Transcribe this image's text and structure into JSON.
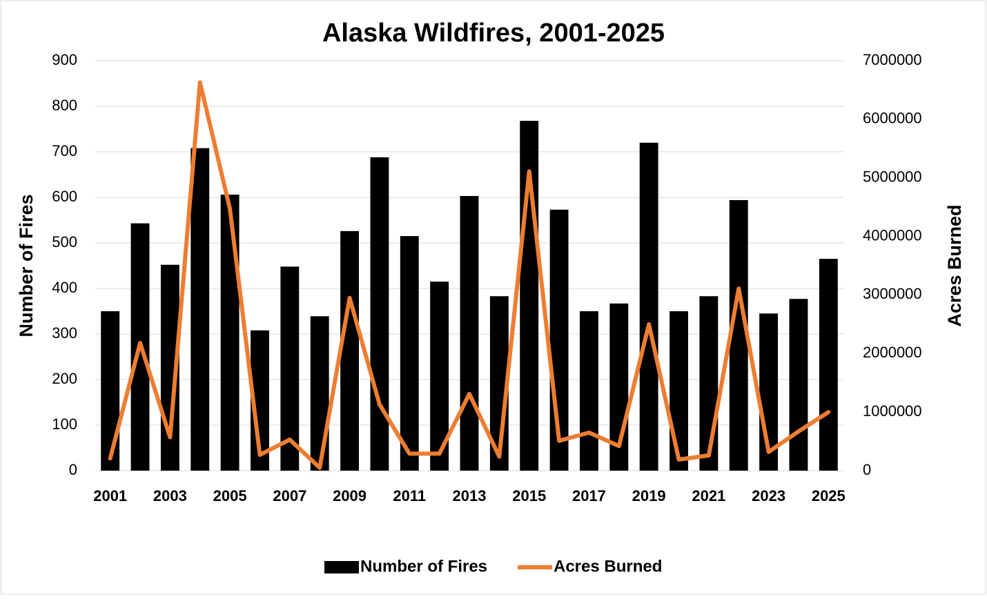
{
  "chart_data": {
    "type": "bar-line",
    "title": "Alaska Wildfires, 2001-2025",
    "y_label": "Number of Fires",
    "y2_label": "Acres Burned",
    "categories": [
      "2001",
      null,
      "2003",
      null,
      "2005",
      null,
      "2007",
      null,
      "2009",
      null,
      "2011",
      null,
      "2013",
      null,
      "2015",
      null,
      "2017",
      null,
      "2019",
      null,
      "2021",
      null,
      "2023",
      null,
      "2025"
    ],
    "series": [
      {
        "name": "Number of Fires",
        "type": "bar",
        "color": "#000000",
        "values": [
          350,
          543,
          452,
          708,
          606,
          308,
          448,
          339,
          526,
          688,
          515,
          415,
          603,
          383,
          768,
          573,
          350,
          367,
          720,
          350,
          383,
          594,
          345,
          377,
          465
        ]
      },
      {
        "name": "Acres Burned",
        "type": "line",
        "axis": "y2",
        "color": "#ed7d31",
        "values": [
          210000,
          2180000,
          570000,
          6630000,
          4470000,
          270000,
          530000,
          50000,
          2950000,
          1130000,
          290000,
          290000,
          1310000,
          240000,
          5110000,
          510000,
          650000,
          420000,
          2500000,
          190000,
          260000,
          3110000,
          320000,
          670000,
          1000000
        ]
      }
    ],
    "ylim": [
      0,
      900
    ],
    "yticks": [
      0,
      100,
      200,
      300,
      400,
      500,
      600,
      700,
      800,
      900
    ],
    "y2lim": [
      0,
      7000000
    ],
    "y2ticks": [
      0,
      1000000,
      2000000,
      3000000,
      4000000,
      5000000,
      6000000,
      7000000
    ],
    "grid": true,
    "legend": "bottom"
  }
}
